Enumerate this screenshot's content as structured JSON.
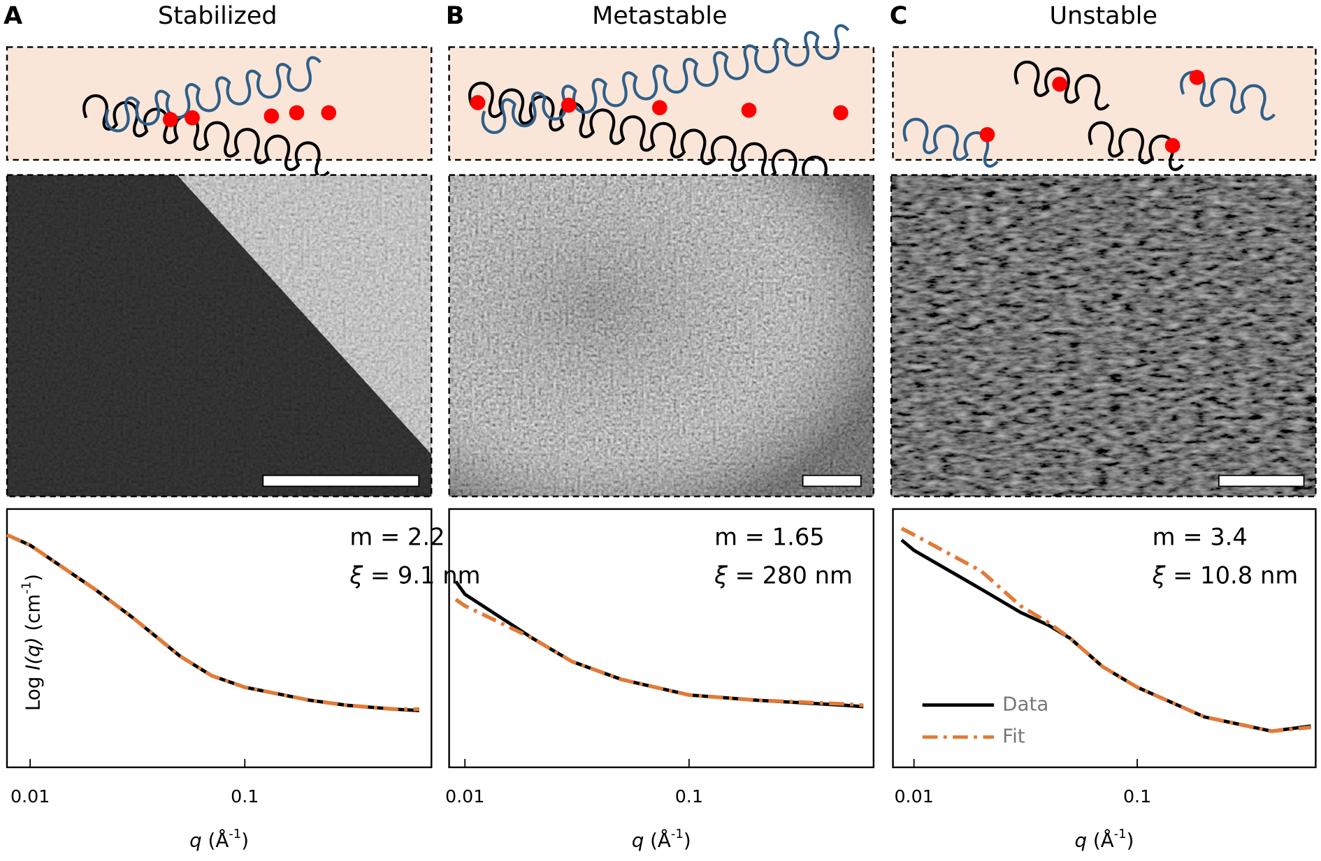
{
  "panels": [
    {
      "letter": "A",
      "title": "Stabilized"
    },
    {
      "letter": "B",
      "title": "Metastable"
    },
    {
      "letter": "C",
      "title": "Unstable"
    }
  ],
  "chart_data": [
    {
      "type": "line",
      "xscale": "log",
      "xlim": [
        0.0078,
        0.74
      ],
      "ylim": [
        0,
        1
      ],
      "xticks": [
        0.01,
        0.1
      ],
      "xlabel": [
        "q",
        " (Å",
        "-1",
        ")"
      ],
      "ylabel": [
        "Log ",
        "I(q)",
        " (cm",
        "-1",
        ")"
      ],
      "annotations": {
        "m": "m = 2.2",
        "xi": [
          "ξ",
          " = 9.1 nm"
        ]
      },
      "x": [
        0.0078,
        0.01,
        0.02,
        0.03,
        0.05,
        0.07,
        0.1,
        0.2,
        0.3,
        0.5,
        0.65
      ],
      "series": [
        {
          "color": "#000000",
          "dash": "solid",
          "values": [
            0.9,
            0.86,
            0.69,
            0.58,
            0.43,
            0.355,
            0.31,
            0.26,
            0.24,
            0.225,
            0.22
          ]
        },
        {
          "color": "#e07b39",
          "dash": "dash-dot",
          "values": [
            0.9,
            0.86,
            0.69,
            0.58,
            0.43,
            0.355,
            0.31,
            0.26,
            0.24,
            0.225,
            0.225
          ]
        }
      ]
    },
    {
      "type": "line",
      "xscale": "log",
      "xlim": [
        0.0085,
        0.666
      ],
      "ylim": [
        0,
        1
      ],
      "xticks": [
        0.01,
        0.1
      ],
      "xlabel": [
        "q",
        " (Å",
        "-1",
        ")"
      ],
      "annotations": {
        "m": "m = 1.65",
        "xi": [
          "ξ",
          " = 280 nm"
        ]
      },
      "x": [
        0.0091,
        0.01,
        0.02,
        0.03,
        0.05,
        0.1,
        0.2,
        0.5,
        0.6
      ],
      "series": [
        {
          "color": "#000000",
          "dash": "solid",
          "values": [
            0.72,
            0.67,
            0.5,
            0.41,
            0.34,
            0.28,
            0.26,
            0.24,
            0.235
          ]
        },
        {
          "color": "#e07b39",
          "dash": "dash-dot",
          "values": [
            0.65,
            0.625,
            0.5,
            0.41,
            0.34,
            0.28,
            0.26,
            0.245,
            0.24
          ]
        }
      ]
    },
    {
      "type": "line",
      "xscale": "log",
      "xlim": [
        0.00805,
        0.63
      ],
      "ylim": [
        0,
        1
      ],
      "xticks": [
        0.01,
        0.1
      ],
      "xlabel": [
        "q",
        " (Å",
        "-1",
        ")"
      ],
      "annotations": {
        "m": "m = 3.4",
        "xi": [
          "ξ",
          " = 10.8 nm"
        ]
      },
      "legend": "lower-left",
      "x": [
        0.0088,
        0.01,
        0.02,
        0.03,
        0.04,
        0.05,
        0.07,
        0.1,
        0.2,
        0.4,
        0.6
      ],
      "series": [
        {
          "name": "Data",
          "color": "#000000",
          "dash": "solid",
          "values": [
            0.88,
            0.84,
            0.69,
            0.6,
            0.55,
            0.5,
            0.39,
            0.31,
            0.195,
            0.14,
            0.16
          ]
        },
        {
          "name": "Fit",
          "color": "#e07b39",
          "dash": "dash-dot",
          "values": [
            0.925,
            0.9,
            0.76,
            0.625,
            0.56,
            0.5,
            0.39,
            0.31,
            0.195,
            0.14,
            0.155
          ]
        }
      ]
    }
  ]
}
